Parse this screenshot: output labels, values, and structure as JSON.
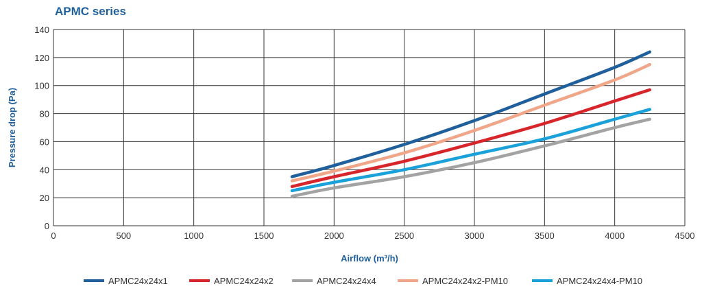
{
  "chart_data": {
    "type": "line",
    "title": "APMC series",
    "xlabel": "Airflow (m³/h)",
    "ylabel": "Pressure drop (Pa)",
    "xlim": [
      0,
      4500
    ],
    "ylim": [
      0,
      140
    ],
    "x_ticks": [
      0,
      500,
      1000,
      1500,
      2000,
      2500,
      3000,
      3500,
      4000,
      4500
    ],
    "y_ticks": [
      0,
      20,
      40,
      60,
      80,
      100,
      120,
      140
    ],
    "x_tick_labels": [
      "0",
      "500",
      "1000",
      "1500",
      "2000",
      "2500",
      "3000",
      "3500",
      "4000",
      "4500"
    ],
    "y_tick_labels": [
      "0",
      "20",
      "40",
      "60",
      "80",
      "100",
      "120",
      "140"
    ],
    "grid": true,
    "legend_position": "bottom",
    "accent_color": "#1f5f9b",
    "series": [
      {
        "name": "APMC24x24x1",
        "color": "#1f5f9b",
        "x": [
          1700,
          2000,
          2500,
          3000,
          3500,
          4000,
          4250
        ],
        "y": [
          35,
          43,
          58,
          75,
          94,
          113,
          124
        ]
      },
      {
        "name": "APMC24x24x2",
        "color": "#d7262b",
        "x": [
          1700,
          2000,
          2500,
          3000,
          3500,
          4000,
          4250
        ],
        "y": [
          28,
          35,
          46,
          59,
          73,
          89,
          97
        ]
      },
      {
        "name": "APMC24x24x4",
        "color": "#a3a3a3",
        "x": [
          1700,
          2000,
          2500,
          3000,
          3500,
          4000,
          4250
        ],
        "y": [
          21,
          27,
          35,
          45,
          57,
          70,
          76
        ]
      },
      {
        "name": "APMC24x24x2-PM10",
        "color": "#f0a688",
        "x": [
          1700,
          2000,
          2500,
          3000,
          3500,
          4000,
          4250
        ],
        "y": [
          32,
          39,
          52,
          68,
          86,
          104,
          115
        ]
      },
      {
        "name": "APMC24x24x4-PM10",
        "color": "#1aa1da",
        "x": [
          1700,
          2000,
          2500,
          3000,
          3500,
          4000,
          4250
        ],
        "y": [
          25,
          31,
          40,
          51,
          62,
          76,
          83
        ]
      }
    ]
  }
}
